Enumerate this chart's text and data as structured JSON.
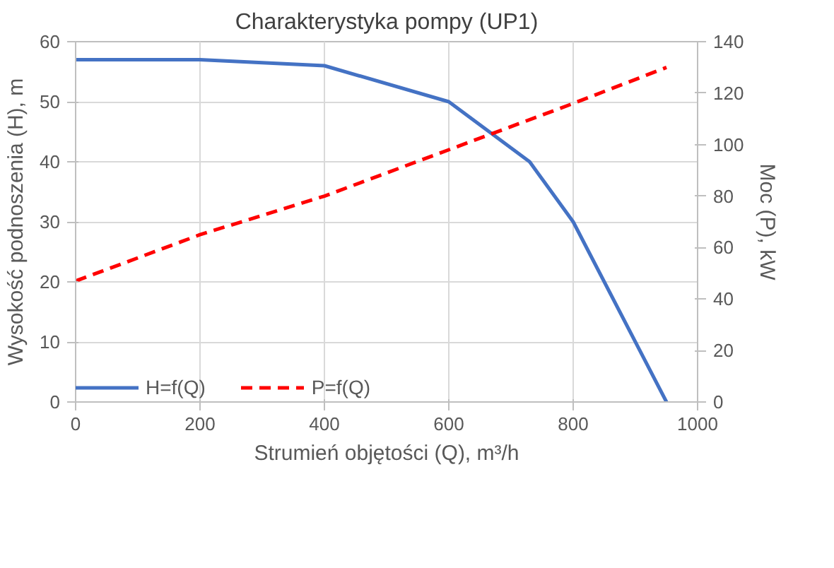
{
  "chart_data": {
    "type": "line",
    "title": "Charakterystyka pompy (UP1)",
    "xlabel": "Strumień objętości (Q), m³/h",
    "ylabel": "Wysokość podnoszenia (H), m",
    "y2label": "Moc (P), kW",
    "xlim": [
      0,
      1000
    ],
    "xticks": [
      0,
      200,
      400,
      600,
      800,
      1000
    ],
    "ylim": [
      0,
      60
    ],
    "yticks": [
      0,
      10,
      20,
      30,
      40,
      50,
      60
    ],
    "y2lim": [
      0,
      140
    ],
    "y2ticks": [
      0,
      20,
      40,
      60,
      80,
      100,
      120,
      140
    ],
    "grid": true,
    "legend": "bottom left",
    "marker": "none",
    "series": [
      {
        "name": "H=f(Q)",
        "color": "#4472c4",
        "line_style": "solid",
        "x": [
          0,
          200,
          400,
          600,
          730,
          800,
          950
        ],
        "values": [
          57,
          57,
          56,
          50,
          40,
          30,
          0
        ]
      },
      {
        "name": "P=f(Q)",
        "color": "#ff0000",
        "line_style": "dashed",
        "axis": "y2",
        "x": [
          0,
          200,
          400,
          600,
          800,
          950
        ],
        "values": [
          47,
          65,
          80,
          98,
          116,
          130
        ]
      }
    ]
  }
}
